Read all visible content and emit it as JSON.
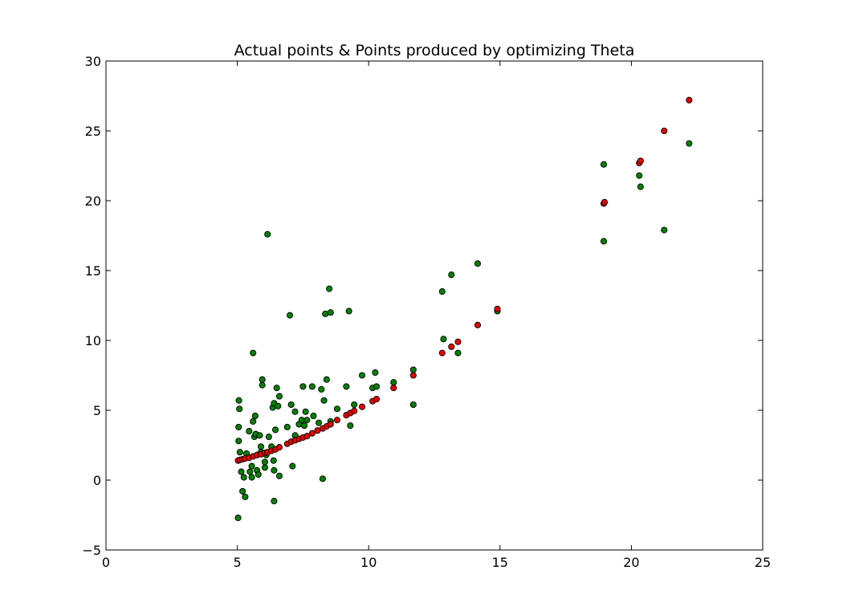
{
  "chart_data": {
    "type": "scatter",
    "title": "Actual points & Points produced by optimizing Theta",
    "xlabel": "",
    "ylabel": "",
    "xlim": [
      0,
      25
    ],
    "ylim": [
      -5,
      30
    ],
    "x_ticks": [
      0,
      5,
      10,
      15,
      20,
      25
    ],
    "y_ticks": [
      -5,
      0,
      5,
      10,
      15,
      20,
      25,
      30
    ],
    "grid": false,
    "legend": "none",
    "series": [
      {
        "color": "#008000",
        "marker": "circle",
        "points": [
          [
            5.03,
            -2.7
          ],
          [
            5.06,
            5.7
          ],
          [
            5.08,
            5.1
          ],
          [
            5.05,
            3.8
          ],
          [
            5.05,
            2.8
          ],
          [
            5.1,
            2.0
          ],
          [
            5.15,
            0.6
          ],
          [
            5.2,
            -0.8
          ],
          [
            5.25,
            0.2
          ],
          [
            5.3,
            -1.2
          ],
          [
            5.35,
            1.9
          ],
          [
            5.45,
            3.5
          ],
          [
            5.48,
            0.6
          ],
          [
            5.55,
            0.2
          ],
          [
            5.55,
            1.0
          ],
          [
            5.6,
            9.1
          ],
          [
            5.6,
            4.2
          ],
          [
            5.65,
            3.1
          ],
          [
            5.68,
            4.6
          ],
          [
            5.7,
            3.3
          ],
          [
            5.75,
            0.7
          ],
          [
            5.75,
            1.8
          ],
          [
            5.8,
            0.4
          ],
          [
            5.85,
            3.2
          ],
          [
            5.9,
            2.4
          ],
          [
            5.9,
            2.0
          ],
          [
            5.95,
            7.2
          ],
          [
            5.95,
            6.8
          ],
          [
            6.05,
            0.9
          ],
          [
            6.05,
            1.3
          ],
          [
            6.1,
            1.8
          ],
          [
            6.15,
            17.6
          ],
          [
            6.2,
            3.1
          ],
          [
            6.3,
            2.4
          ],
          [
            6.35,
            5.2
          ],
          [
            6.38,
            1.4
          ],
          [
            6.4,
            5.5
          ],
          [
            6.4,
            0.7
          ],
          [
            6.4,
            -1.5
          ],
          [
            6.45,
            3.6
          ],
          [
            6.5,
            6.6
          ],
          [
            6.55,
            5.3
          ],
          [
            6.6,
            6.0
          ],
          [
            6.6,
            0.3
          ],
          [
            6.9,
            3.8
          ],
          [
            7.0,
            11.8
          ],
          [
            7.05,
            5.4
          ],
          [
            7.1,
            1.0
          ],
          [
            7.2,
            4.9
          ],
          [
            7.2,
            3.2
          ],
          [
            7.35,
            4.0
          ],
          [
            7.45,
            4.3
          ],
          [
            7.5,
            6.7
          ],
          [
            7.55,
            3.9
          ],
          [
            7.6,
            4.9
          ],
          [
            7.65,
            4.3
          ],
          [
            7.85,
            6.7
          ],
          [
            7.9,
            4.6
          ],
          [
            8.1,
            4.1
          ],
          [
            8.2,
            6.5
          ],
          [
            8.25,
            0.1
          ],
          [
            8.3,
            5.7
          ],
          [
            8.35,
            11.9
          ],
          [
            8.4,
            7.2
          ],
          [
            8.5,
            13.7
          ],
          [
            8.55,
            12.0
          ],
          [
            8.55,
            4.2
          ],
          [
            8.8,
            5.1
          ],
          [
            9.15,
            6.7
          ],
          [
            9.25,
            12.1
          ],
          [
            9.3,
            3.9
          ],
          [
            9.45,
            5.4
          ],
          [
            9.75,
            7.5
          ],
          [
            10.15,
            6.6
          ],
          [
            10.25,
            7.7
          ],
          [
            10.3,
            6.7
          ],
          [
            10.95,
            7.0
          ],
          [
            11.7,
            7.9
          ],
          [
            11.7,
            5.4
          ],
          [
            12.8,
            13.5
          ],
          [
            12.85,
            10.1
          ],
          [
            13.15,
            14.7
          ],
          [
            13.4,
            9.1
          ],
          [
            14.15,
            15.5
          ],
          [
            14.9,
            12.1
          ],
          [
            18.95,
            22.6
          ],
          [
            18.95,
            17.1
          ],
          [
            20.3,
            21.8
          ],
          [
            20.35,
            21.0
          ],
          [
            21.25,
            17.9
          ],
          [
            22.2,
            24.1
          ]
        ]
      },
      {
        "color": "#e00000",
        "marker": "circle",
        "points": [
          [
            5.03,
            1.4
          ],
          [
            5.1,
            1.45
          ],
          [
            5.2,
            1.5
          ],
          [
            5.3,
            1.55
          ],
          [
            5.45,
            1.6
          ],
          [
            5.6,
            1.7
          ],
          [
            5.75,
            1.8
          ],
          [
            5.9,
            1.85
          ],
          [
            6.05,
            1.95
          ],
          [
            6.15,
            2.0
          ],
          [
            6.3,
            2.1
          ],
          [
            6.45,
            2.2
          ],
          [
            6.6,
            2.35
          ],
          [
            6.9,
            2.6
          ],
          [
            7.05,
            2.75
          ],
          [
            7.2,
            2.85
          ],
          [
            7.35,
            2.95
          ],
          [
            7.5,
            3.05
          ],
          [
            7.65,
            3.15
          ],
          [
            7.85,
            3.35
          ],
          [
            8.05,
            3.55
          ],
          [
            8.25,
            3.7
          ],
          [
            8.4,
            3.85
          ],
          [
            8.55,
            4.0
          ],
          [
            8.8,
            4.3
          ],
          [
            9.15,
            4.65
          ],
          [
            9.3,
            4.8
          ],
          [
            9.45,
            4.95
          ],
          [
            9.75,
            5.25
          ],
          [
            10.15,
            5.65
          ],
          [
            10.3,
            5.8
          ],
          [
            10.95,
            6.6
          ],
          [
            11.7,
            7.5
          ],
          [
            12.8,
            9.1
          ],
          [
            13.15,
            9.55
          ],
          [
            13.4,
            9.9
          ],
          [
            14.15,
            11.1
          ],
          [
            14.9,
            12.25
          ],
          [
            18.95,
            19.8
          ],
          [
            18.98,
            19.9
          ],
          [
            20.3,
            22.7
          ],
          [
            20.35,
            22.85
          ],
          [
            21.25,
            25.0
          ],
          [
            22.2,
            27.2
          ]
        ]
      }
    ]
  }
}
